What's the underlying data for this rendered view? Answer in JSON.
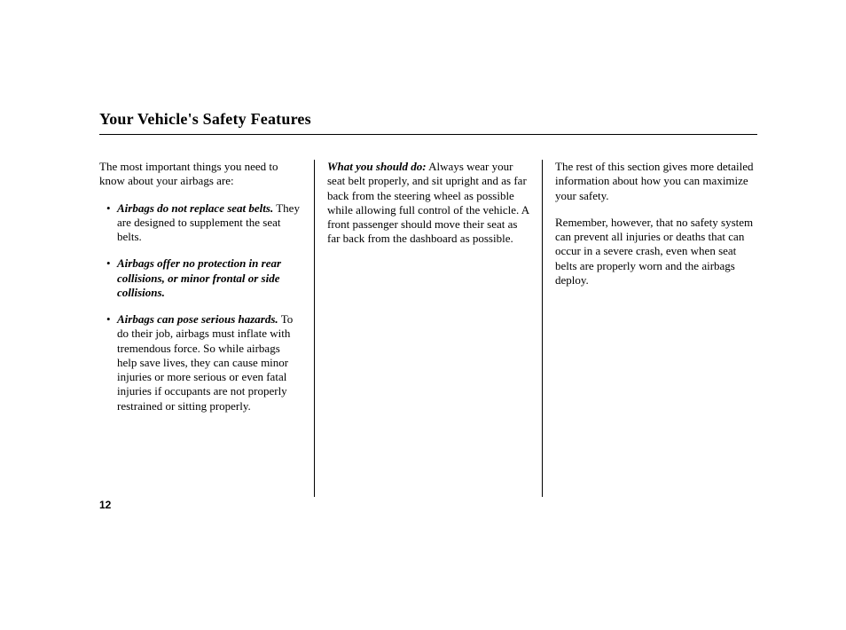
{
  "title": "Your Vehicle's Safety Features",
  "pageNumber": "12",
  "col1": {
    "intro": "The most important things you need to know about your airbags are:",
    "bullets": [
      {
        "lead": "Airbags do not replace seat belts.",
        "rest": " They are designed to supplement the seat belts."
      },
      {
        "lead": "Airbags offer no protection in rear collisions, or minor frontal or side collisions.",
        "rest": ""
      },
      {
        "lead": "Airbags can pose serious hazards.",
        "rest": " To do their job, airbags must inflate with tremendous force. So while airbags help save lives, they can cause minor injuries or more serious or even fatal injuries if occupants are not properly restrained or sitting properly."
      }
    ]
  },
  "col2": {
    "lead": "What you should do:",
    "rest": " Always wear your seat belt properly, and sit upright and as far back from the steering wheel as possible while allowing full control of the vehicle. A front passenger should move their seat as far back from the dashboard as possible."
  },
  "col3": {
    "p1": "The rest of this section gives more detailed information about how you can maximize your safety.",
    "p2": "Remember, however, that no safety system can prevent all injuries or deaths that can occur in a severe crash, even when seat belts are properly worn and the airbags deploy."
  }
}
